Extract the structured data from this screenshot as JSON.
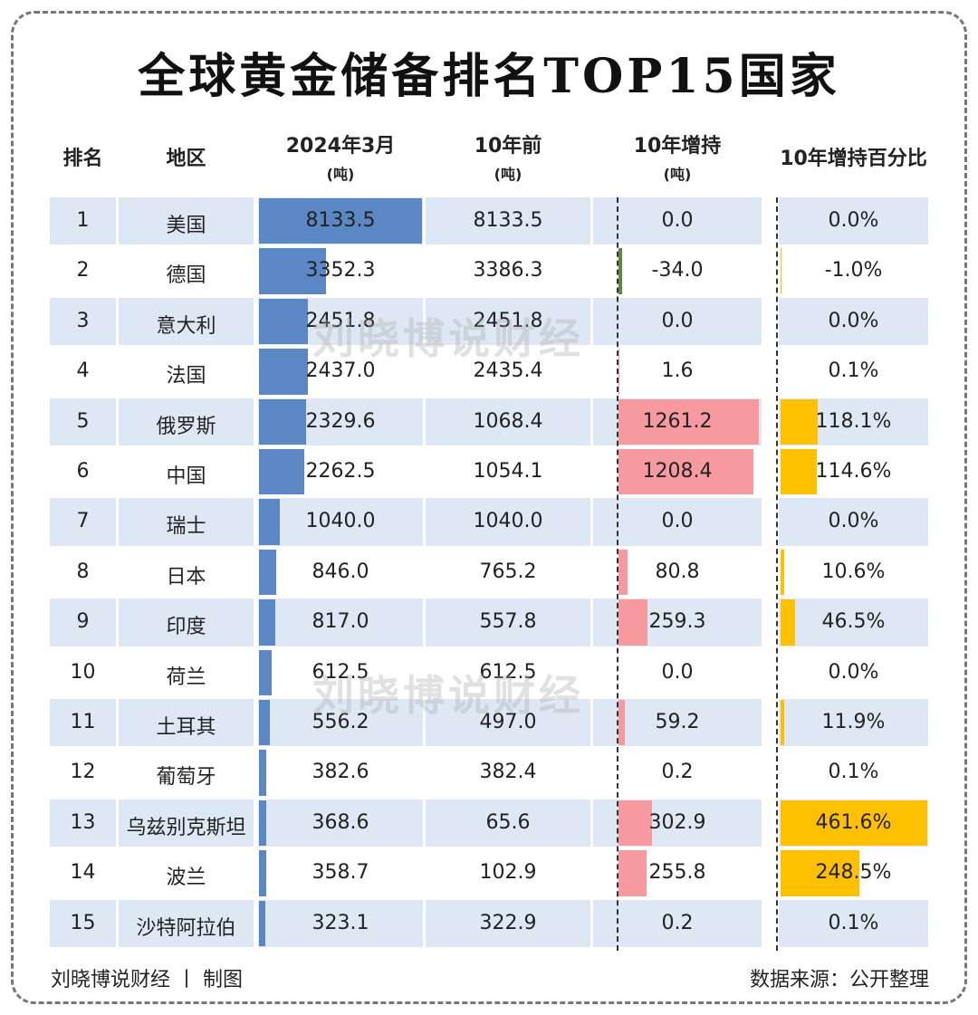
{
  "title": "全球黄金储备排名TOP15国家",
  "headers": [
    {
      "main": "排名"
    },
    {
      "main": "地区"
    },
    {
      "main": "2024年3月",
      "unit": "(吨)"
    },
    {
      "main": "10年前",
      "unit": "(吨)"
    },
    {
      "main": "10年增持",
      "unit": "(吨)"
    },
    {
      "main": "10年增持百分比"
    }
  ],
  "rows": [
    [
      "1",
      "美国",
      "8133.5",
      "8133.5",
      "0.0",
      "0.0%"
    ],
    [
      "2",
      "德国",
      "3352.3",
      "3386.3",
      "-34.0",
      "-1.0%"
    ],
    [
      "3",
      "意大利",
      "2451.8",
      "2451.8",
      "0.0",
      "0.0%"
    ],
    [
      "4",
      "法国",
      "2437.0",
      "2435.4",
      "1.6",
      "0.1%"
    ],
    [
      "5",
      "俄罗斯",
      "2329.6",
      "1068.4",
      "1261.2",
      "118.1%"
    ],
    [
      "6",
      "中国",
      "2262.5",
      "1054.1",
      "1208.4",
      "114.6%"
    ],
    [
      "7",
      "瑞士",
      "1040.0",
      "1040.0",
      "0.0",
      "0.0%"
    ],
    [
      "8",
      "日本",
      "846.0",
      "765.2",
      "80.8",
      "10.6%"
    ],
    [
      "9",
      "印度",
      "817.0",
      "557.8",
      "259.3",
      "46.5%"
    ],
    [
      "10",
      "荷兰",
      "612.5",
      "612.5",
      "0.0",
      "0.0%"
    ],
    [
      "11",
      "土耳其",
      "556.2",
      "497.0",
      "59.2",
      "11.9%"
    ],
    [
      "12",
      "葡萄牙",
      "382.6",
      "382.4",
      "0.2",
      "0.1%"
    ],
    [
      "13",
      "乌兹别克斯坦",
      "368.6",
      "65.6",
      "302.9",
      "461.6%"
    ],
    [
      "14",
      "波兰",
      "358.7",
      "102.9",
      "255.8",
      "248.5%"
    ],
    [
      "15",
      "沙特阿拉伯",
      "323.1",
      "322.9",
      "0.2",
      "0.1%"
    ]
  ],
  "watermark": "刘晓博说财经",
  "footer": {
    "left": "刘晓博说财经 丨 制图",
    "right": "数据来源：公开整理"
  }
}
